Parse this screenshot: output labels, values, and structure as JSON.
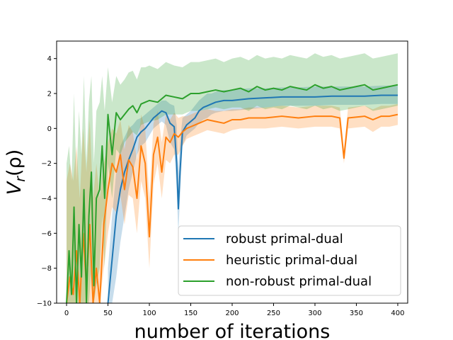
{
  "chart_data": {
    "type": "line",
    "xlabel": "number of iterations",
    "ylabel": "V_r(ρ)",
    "xlim": [
      -12,
      412
    ],
    "ylim": [
      -10,
      5
    ],
    "xticks": [
      0,
      50,
      100,
      150,
      200,
      250,
      300,
      350,
      400
    ],
    "yticks": [
      -10,
      -8,
      -6,
      -4,
      -2,
      0,
      2,
      4
    ],
    "grid": false,
    "legend_position": "lower-right",
    "series": [
      {
        "name": "robust primal-dual",
        "color": "#1f77b4",
        "x": [
          50,
          55,
          60,
          65,
          70,
          75,
          80,
          85,
          90,
          95,
          100,
          105,
          110,
          115,
          120,
          125,
          130,
          133,
          135,
          137,
          140,
          145,
          150,
          155,
          160,
          165,
          170,
          175,
          180,
          190,
          200,
          220,
          240,
          260,
          280,
          300,
          320,
          340,
          360,
          380,
          400
        ],
        "mean": [
          -10,
          -7.5,
          -5.0,
          -3.5,
          -2.5,
          -1.8,
          -1.2,
          -0.5,
          -0.2,
          0.0,
          0.3,
          0.6,
          0.8,
          1.0,
          0.9,
          0.3,
          0.1,
          -2.0,
          -4.6,
          -2.5,
          -0.2,
          0.2,
          0.4,
          0.6,
          1.0,
          1.2,
          1.3,
          1.4,
          1.5,
          1.6,
          1.6,
          1.7,
          1.75,
          1.8,
          1.8,
          1.8,
          1.85,
          1.85,
          1.85,
          1.9,
          1.9
        ],
        "lower": [
          -10,
          -10,
          -8.5,
          -6.5,
          -5.0,
          -3.5,
          -2.5,
          -1.5,
          -1.0,
          -0.8,
          -0.4,
          0.0,
          0.2,
          0.4,
          0.2,
          -0.8,
          -1.2,
          -3.5,
          -6.0,
          -4.0,
          -1.0,
          -0.4,
          -0.2,
          0.0,
          0.3,
          0.5,
          0.6,
          0.8,
          0.9,
          1.0,
          1.0,
          1.1,
          1.2,
          1.3,
          1.3,
          1.3,
          1.35,
          1.35,
          1.35,
          1.4,
          1.4
        ],
        "upper": [
          -8.0,
          -5.0,
          -2.5,
          -1.0,
          -0.5,
          0.0,
          0.2,
          0.5,
          0.6,
          0.8,
          1.0,
          1.2,
          1.4,
          1.6,
          1.6,
          1.4,
          1.3,
          0.2,
          -2.5,
          -0.8,
          0.6,
          0.8,
          1.0,
          1.3,
          1.6,
          1.8,
          2.0,
          2.0,
          2.1,
          2.2,
          2.2,
          2.3,
          2.3,
          2.35,
          2.35,
          2.4,
          2.4,
          2.4,
          2.4,
          2.45,
          2.45
        ]
      },
      {
        "name": "heuristic primal-dual",
        "color": "#ff7f0e",
        "x": [
          0,
          4,
          8,
          12,
          16,
          20,
          24,
          28,
          32,
          36,
          40,
          45,
          50,
          55,
          60,
          65,
          70,
          75,
          80,
          85,
          90,
          95,
          100,
          105,
          110,
          115,
          120,
          125,
          130,
          135,
          140,
          145,
          150,
          160,
          170,
          180,
          190,
          200,
          210,
          220,
          240,
          260,
          280,
          300,
          320,
          330,
          335,
          340,
          360,
          370,
          380,
          390,
          400
        ],
        "mean": [
          -10,
          -8.5,
          -9.5,
          -7.0,
          -10,
          -6.0,
          -9.0,
          -5.5,
          -10,
          -8.0,
          -10,
          -5.5,
          -3.5,
          -2.0,
          -2.5,
          -1.5,
          -3.5,
          -1.8,
          -2.2,
          -4.0,
          -1.0,
          -2.0,
          -6.2,
          -1.5,
          -0.5,
          -2.5,
          -0.5,
          -0.8,
          -0.3,
          -0.5,
          -0.2,
          0.0,
          0.1,
          0.3,
          0.5,
          0.4,
          0.3,
          0.5,
          0.5,
          0.6,
          0.6,
          0.7,
          0.6,
          0.7,
          0.7,
          0.6,
          -1.7,
          0.6,
          0.7,
          0.5,
          0.7,
          0.7,
          0.8
        ],
        "lower": [
          -10,
          -10,
          -10,
          -10,
          -10,
          -10,
          -10,
          -10,
          -10,
          -10,
          -10,
          -8.0,
          -6.0,
          -4.5,
          -4.8,
          -3.8,
          -5.5,
          -3.8,
          -4.0,
          -6.0,
          -3.0,
          -4.0,
          -8.0,
          -3.2,
          -2.0,
          -4.0,
          -1.8,
          -2.0,
          -1.5,
          -1.5,
          -1.0,
          -0.6,
          -0.5,
          -0.3,
          -0.1,
          -0.2,
          -0.3,
          -0.1,
          0.0,
          0.0,
          0.0,
          0.1,
          0.0,
          0.1,
          0.1,
          0.0,
          -2.0,
          0.0,
          0.1,
          -0.2,
          0.1,
          0.1,
          0.2
        ],
        "upper": [
          -3.0,
          -2.0,
          -3.0,
          -1.0,
          -4.0,
          0.0,
          -2.5,
          0.5,
          -4.0,
          -2.0,
          -4.0,
          -2.0,
          -0.8,
          0.0,
          -0.3,
          0.5,
          -1.2,
          0.2,
          -0.2,
          -1.8,
          0.8,
          0.0,
          -4.0,
          0.3,
          1.0,
          -0.8,
          0.8,
          0.5,
          0.9,
          0.6,
          0.7,
          0.7,
          0.8,
          1.0,
          1.1,
          1.0,
          1.0,
          1.1,
          1.1,
          1.2,
          1.2,
          1.3,
          1.2,
          1.3,
          1.3,
          1.2,
          -1.2,
          1.2,
          1.3,
          1.1,
          1.3,
          1.3,
          1.4
        ]
      },
      {
        "name": "non-robust primal-dual",
        "color": "#2ca02c",
        "x": [
          0,
          3,
          6,
          9,
          12,
          15,
          18,
          21,
          24,
          27,
          30,
          33,
          36,
          40,
          43,
          46,
          50,
          55,
          60,
          65,
          70,
          75,
          80,
          85,
          90,
          95,
          100,
          110,
          120,
          130,
          140,
          150,
          160,
          170,
          180,
          190,
          200,
          210,
          220,
          230,
          240,
          250,
          260,
          270,
          280,
          290,
          300,
          310,
          320,
          330,
          340,
          350,
          360,
          370,
          380,
          390,
          400
        ],
        "mean": [
          -10,
          -7.0,
          -9.5,
          -4.5,
          -10,
          -5.5,
          -8.5,
          -3.5,
          -10,
          -5.0,
          -2.5,
          -9.0,
          -4.0,
          -3.5,
          -1.0,
          -4.0,
          0.8,
          -1.5,
          0.9,
          0.5,
          0.8,
          1.1,
          1.3,
          0.9,
          1.4,
          1.5,
          1.6,
          1.5,
          1.9,
          1.8,
          1.7,
          2.0,
          2.0,
          2.1,
          2.2,
          2.1,
          2.2,
          2.3,
          2.1,
          2.4,
          2.2,
          2.3,
          2.2,
          2.4,
          2.3,
          2.2,
          2.5,
          2.3,
          2.4,
          2.2,
          2.3,
          2.4,
          2.5,
          2.2,
          2.3,
          2.4,
          2.5
        ],
        "lower": [
          -10,
          -10,
          -10,
          -10,
          -10,
          -10,
          -10,
          -10,
          -10,
          -10,
          -8.0,
          -10,
          -9.0,
          -8.0,
          -5.0,
          -8.0,
          -2.0,
          -4.0,
          -1.2,
          -1.5,
          -0.8,
          -0.5,
          -0.2,
          -0.4,
          0.2,
          0.3,
          0.4,
          0.5,
          0.8,
          0.8,
          0.8,
          1.0,
          1.0,
          1.1,
          1.2,
          1.1,
          1.2,
          1.2,
          1.0,
          1.3,
          1.1,
          1.2,
          1.1,
          1.3,
          1.2,
          1.1,
          1.3,
          1.1,
          1.2,
          1.0,
          1.1,
          1.2,
          1.3,
          1.0,
          1.1,
          1.2,
          1.3
        ],
        "upper": [
          -2.0,
          -1.0,
          -3.0,
          2.0,
          -3.0,
          1.0,
          -1.5,
          3.0,
          -2.0,
          1.5,
          3.0,
          -2.0,
          1.0,
          1.5,
          3.0,
          1.0,
          3.5,
          1.5,
          3.0,
          2.5,
          2.8,
          3.2,
          3.3,
          2.8,
          3.5,
          3.5,
          3.6,
          3.4,
          3.8,
          3.6,
          3.5,
          3.8,
          3.8,
          3.9,
          4.0,
          3.8,
          4.0,
          4.1,
          3.9,
          4.2,
          4.0,
          4.1,
          4.0,
          4.2,
          4.1,
          4.0,
          4.3,
          4.1,
          4.2,
          4.0,
          4.1,
          4.2,
          4.3,
          4.0,
          4.1,
          4.2,
          4.3
        ]
      }
    ]
  }
}
